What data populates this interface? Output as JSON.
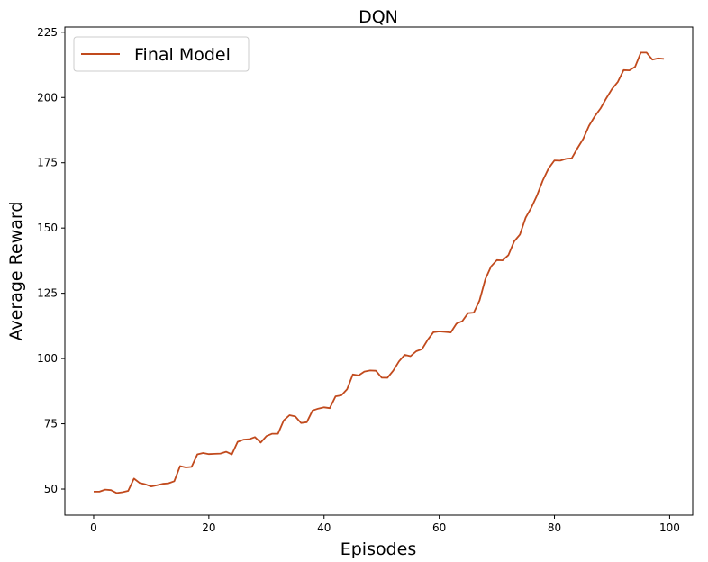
{
  "chart_data": {
    "type": "line",
    "title": "DQN",
    "xlabel": "Episodes",
    "ylabel": "Average Reward",
    "xlim": [
      -5,
      104
    ],
    "ylim": [
      40,
      227
    ],
    "xticks": [
      0,
      20,
      40,
      60,
      80,
      100
    ],
    "yticks": [
      50,
      75,
      100,
      125,
      150,
      175,
      200,
      225
    ],
    "grid": false,
    "legend": "upper-left",
    "series": [
      {
        "name": "Final Model",
        "color": "#c14a1d",
        "x": [
          0,
          1,
          2,
          3,
          4,
          5,
          6,
          7,
          8,
          9,
          10,
          11,
          12,
          13,
          14,
          15,
          16,
          17,
          18,
          19,
          20,
          21,
          22,
          23,
          24,
          25,
          26,
          27,
          28,
          29,
          30,
          31,
          32,
          33,
          34,
          35,
          36,
          37,
          38,
          39,
          40,
          41,
          42,
          43,
          44,
          45,
          46,
          47,
          48,
          49,
          50,
          51,
          52,
          53,
          54,
          55,
          56,
          57,
          58,
          59,
          60,
          61,
          62,
          63,
          64,
          65,
          66,
          67,
          68,
          69,
          70,
          71,
          72,
          73,
          74,
          75,
          76,
          77,
          78,
          79,
          80,
          81,
          82,
          83,
          84,
          85,
          86,
          87,
          88,
          89,
          90,
          91,
          92,
          93,
          94,
          95,
          96,
          97,
          98,
          99
        ],
        "values": [
          49,
          49,
          49.8,
          49.6,
          48.5,
          48.8,
          49.3,
          54,
          52.3,
          51.8,
          51,
          51.5,
          52,
          52.2,
          53,
          58.8,
          58.3,
          58.5,
          63.3,
          63.8,
          63.4,
          63.5,
          63.6,
          64.3,
          63.3,
          68.1,
          68.9,
          69.1,
          69.9,
          67.8,
          70.3,
          71.2,
          71.2,
          76.3,
          78.3,
          77.8,
          75.3,
          75.6,
          80.1,
          80.8,
          81.3,
          81,
          85.5,
          85.9,
          88.2,
          93.9,
          93.5,
          95,
          95.4,
          95.3,
          92.7,
          92.6,
          95.3,
          98.9,
          101.4,
          100.9,
          102.8,
          103.6,
          107.2,
          110.1,
          110.4,
          110.2,
          110,
          113.4,
          114.3,
          117.4,
          117.6,
          122.3,
          130.4,
          135.3,
          137.7,
          137.6,
          139.6,
          144.9,
          147.5,
          154,
          157.9,
          162.6,
          168.3,
          172.9,
          175.9,
          175.8,
          176.5,
          176.7,
          180.6,
          184.2,
          189.2,
          192.8,
          195.8,
          199.7,
          203.3,
          206,
          210.5,
          210.4,
          211.8,
          217.2,
          217.2,
          214.5,
          215,
          214.8
        ]
      }
    ]
  }
}
